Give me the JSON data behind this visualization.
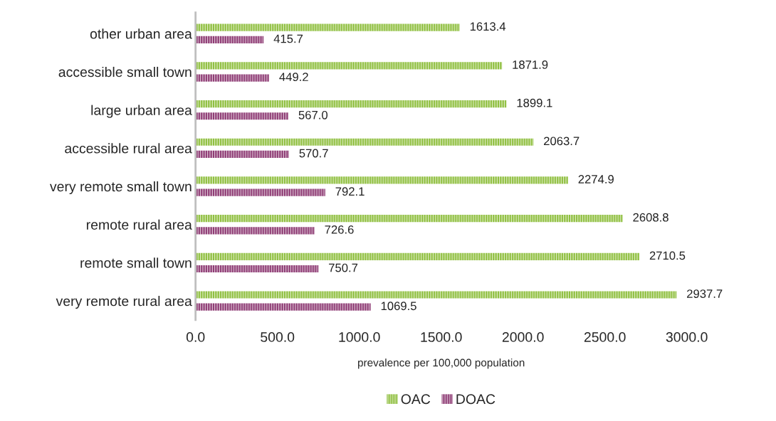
{
  "chart_data": {
    "type": "bar",
    "orientation": "horizontal",
    "xlabel": "prevalence per 100,000 population",
    "categories": [
      "other urban area",
      "accessible small town",
      "large urban area",
      "accessible rural area",
      "very remote small town",
      "remote rural area",
      "remote small town",
      "very remote rural area"
    ],
    "series": [
      {
        "name": "OAC",
        "color": "#8fbf3f",
        "values": [
          1613.4,
          1871.9,
          1899.1,
          2063.7,
          2274.9,
          2608.8,
          2710.5,
          2937.7
        ],
        "value_labels": [
          "1613.4",
          "1871.9",
          "1899.1",
          "2063.7",
          "2274.9",
          "2608.8",
          "2710.5",
          "2937.7"
        ]
      },
      {
        "name": "DOAC",
        "color": "#8e3b74",
        "values": [
          415.7,
          449.2,
          567.0,
          570.7,
          792.1,
          726.6,
          750.7,
          1069.5
        ],
        "value_labels": [
          "415.7",
          "449.2",
          "567.0",
          "570.7",
          "792.1",
          "726.6",
          "750.7",
          "1069.5"
        ]
      }
    ],
    "xlim": [
      0,
      3000
    ],
    "xticks": [
      {
        "value": 0,
        "label": "0.0"
      },
      {
        "value": 500,
        "label": "500.0"
      },
      {
        "value": 1000,
        "label": "1000.0"
      },
      {
        "value": 1500,
        "label": "1500.0"
      },
      {
        "value": 2000,
        "label": "2000.0"
      },
      {
        "value": 2500,
        "label": "2500.0"
      },
      {
        "value": 3000,
        "label": "3000.0"
      }
    ],
    "grid": false,
    "legend": "bottom"
  }
}
